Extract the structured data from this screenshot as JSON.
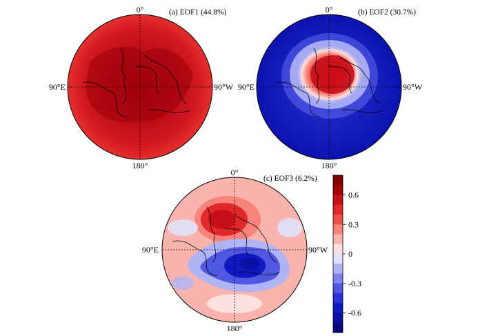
{
  "panels": [
    {
      "title": "(a) EOF1 (44.8%)",
      "pattern": "uniform-positive",
      "labels": {
        "top": "0°",
        "left": "90°E",
        "right": "90°W",
        "bottom": "180°"
      }
    },
    {
      "title": "(b) EOF2 (30.7%)",
      "pattern": "positive-center-negative-ring",
      "labels": {
        "top": "0°",
        "left": "90°E",
        "right": "90°W",
        "bottom": "180°"
      }
    },
    {
      "title": "(c) EOF3 (6.2%)",
      "pattern": "dipole",
      "labels": {
        "top": "0°",
        "left": "90°E",
        "right": "90°W",
        "bottom": "180°"
      }
    }
  ],
  "colorbar": {
    "tick_labels": [
      "0.6",
      "0.3",
      "0",
      "-0.3",
      "-0.6"
    ],
    "tick_values": [
      0.6,
      0.3,
      0,
      -0.3,
      -0.6
    ],
    "range": [
      -0.8,
      0.8
    ],
    "colors": [
      "#7f0000",
      "#a50008",
      "#c8101a",
      "#e3282a",
      "#f0504b",
      "#f7837a",
      "#fbb3ad",
      "#fde1de",
      "#dfe1fb",
      "#b0b4f5",
      "#7f84ec",
      "#5058e2",
      "#2a33d5",
      "#1018c2",
      "#0a0ea3",
      "#06087f"
    ]
  }
}
